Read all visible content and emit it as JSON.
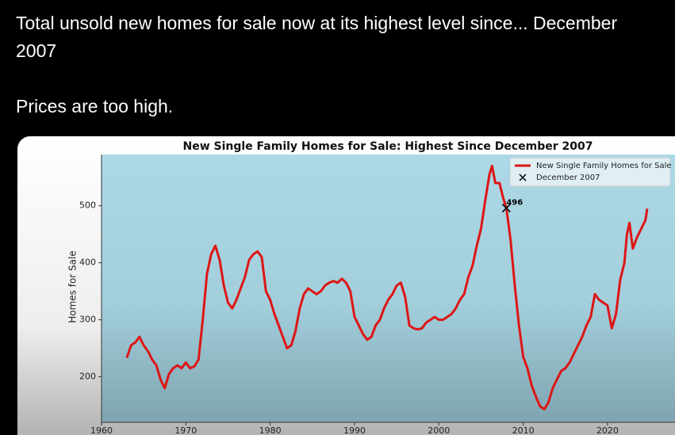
{
  "post": {
    "paragraphs": [
      "Total unsold new homes for sale now at its highest level since... December 2007",
      "Prices are too high."
    ]
  },
  "chart_data": {
    "type": "line",
    "title": "New Single Family Homes for Sale: Highest Since December 2007",
    "y_label": "Homes for Sale",
    "x": [
      1963,
      1963.5,
      1964,
      1964.5,
      1965,
      1965.5,
      1966,
      1966.5,
      1967,
      1967.5,
      1968,
      1968.5,
      1969,
      1969.5,
      1970,
      1970.5,
      1971,
      1971.5,
      1972,
      1972.5,
      1973,
      1973.5,
      1974,
      1974.5,
      1975,
      1975.5,
      1976,
      1976.5,
      1977,
      1977.5,
      1978,
      1978.5,
      1979,
      1979.5,
      1980,
      1980.5,
      1981,
      1981.5,
      1982,
      1982.5,
      1983,
      1983.5,
      1984,
      1984.5,
      1985,
      1985.5,
      1986,
      1986.5,
      1987,
      1987.5,
      1988,
      1988.5,
      1989,
      1989.5,
      1990,
      1990.5,
      1991,
      1991.5,
      1992,
      1992.5,
      1993,
      1993.5,
      1994,
      1994.5,
      1995,
      1995.5,
      1996,
      1996.5,
      1997,
      1997.5,
      1998,
      1998.5,
      1999,
      1999.5,
      2000,
      2000.5,
      2001,
      2001.5,
      2002,
      2002.5,
      2003,
      2003.5,
      2004,
      2004.5,
      2005,
      2005.5,
      2006,
      2006.3,
      2006.7,
      2007.2,
      2007.6,
      2008,
      2008.5,
      2009,
      2009.5,
      2010,
      2010.5,
      2011,
      2011.5,
      2012,
      2012.5,
      2013,
      2013.5,
      2014,
      2014.5,
      2015,
      2015.5,
      2016,
      2016.5,
      2017,
      2017.5,
      2018,
      2018.5,
      2019,
      2019.5,
      2020,
      2020.5,
      2021,
      2021.5,
      2022,
      2022.3,
      2022.6,
      2023,
      2023.5,
      2024,
      2024.5,
      2024.7
    ],
    "series": [
      {
        "name": "New Single Family Homes for Sale",
        "color": "#dd1616",
        "values": [
          233,
          255,
          260,
          270,
          255,
          245,
          230,
          220,
          195,
          180,
          205,
          215,
          220,
          215,
          225,
          215,
          218,
          230,
          300,
          380,
          415,
          430,
          405,
          360,
          330,
          320,
          335,
          355,
          375,
          405,
          415,
          420,
          410,
          350,
          335,
          310,
          290,
          270,
          250,
          255,
          280,
          320,
          345,
          355,
          350,
          345,
          350,
          360,
          365,
          368,
          365,
          372,
          365,
          350,
          305,
          290,
          275,
          265,
          270,
          290,
          300,
          320,
          335,
          345,
          360,
          365,
          340,
          290,
          285,
          283,
          285,
          295,
          300,
          305,
          300,
          300,
          305,
          310,
          320,
          335,
          345,
          375,
          395,
          430,
          460,
          510,
          555,
          570,
          540,
          540,
          515,
          496,
          440,
          360,
          290,
          235,
          215,
          185,
          165,
          148,
          143,
          155,
          180,
          195,
          210,
          215,
          225,
          240,
          255,
          270,
          290,
          305,
          345,
          335,
          330,
          325,
          285,
          310,
          370,
          400,
          450,
          470,
          425,
          445,
          460,
          475,
          495
        ]
      }
    ],
    "marker": {
      "name": "December 2007",
      "x": 2008,
      "y": 496,
      "color": "#000000"
    },
    "xlim": [
      1960,
      2028
    ],
    "ylim": [
      120,
      590
    ],
    "xticks": [
      1960,
      1970,
      1980,
      1990,
      2000,
      2010,
      2020
    ],
    "yticks": [
      200,
      300,
      400,
      500
    ],
    "legend": "upper right"
  }
}
